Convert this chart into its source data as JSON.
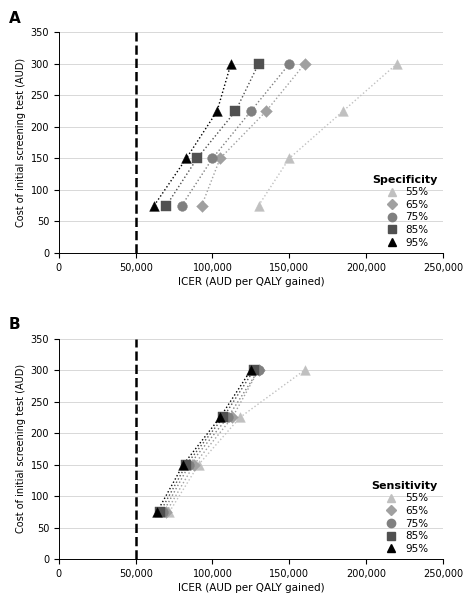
{
  "panel_A": {
    "title": "A",
    "legend_title": "Specificity",
    "series": [
      {
        "label": "55%",
        "color": "#c0c0c0",
        "marker": "^",
        "markersize": 7,
        "x": [
          130000,
          150000,
          185000,
          220000
        ],
        "y": [
          75,
          150,
          225,
          300
        ]
      },
      {
        "label": "65%",
        "color": "#a0a0a0",
        "marker": "D",
        "markersize": 6,
        "x": [
          93000,
          105000,
          135000,
          160000
        ],
        "y": [
          75,
          150,
          225,
          300
        ]
      },
      {
        "label": "75%",
        "color": "#808080",
        "marker": "o",
        "markersize": 7,
        "x": [
          80000,
          100000,
          125000,
          150000
        ],
        "y": [
          75,
          150,
          225,
          300
        ]
      },
      {
        "label": "85%",
        "color": "#505050",
        "marker": "s",
        "markersize": 7,
        "x": [
          70000,
          90000,
          115000,
          130000
        ],
        "y": [
          75,
          150,
          225,
          300
        ]
      },
      {
        "label": "95%",
        "color": "#000000",
        "marker": "^",
        "markersize": 7,
        "x": [
          62000,
          83000,
          103000,
          112000
        ],
        "y": [
          75,
          150,
          225,
          300
        ]
      }
    ]
  },
  "panel_B": {
    "title": "B",
    "legend_title": "Sensitivity",
    "series": [
      {
        "label": "55%",
        "color": "#c0c0c0",
        "marker": "^",
        "markersize": 7,
        "x": [
          72000,
          91000,
          118000,
          160000
        ],
        "y": [
          75,
          150,
          225,
          300
        ]
      },
      {
        "label": "65%",
        "color": "#a0a0a0",
        "marker": "D",
        "markersize": 6,
        "x": [
          70000,
          88000,
          113000,
          130000
        ],
        "y": [
          75,
          150,
          225,
          300
        ]
      },
      {
        "label": "75%",
        "color": "#808080",
        "marker": "o",
        "markersize": 7,
        "x": [
          68000,
          85000,
          110000,
          130000
        ],
        "y": [
          75,
          150,
          225,
          300
        ]
      },
      {
        "label": "85%",
        "color": "#505050",
        "marker": "s",
        "markersize": 7,
        "x": [
          66000,
          83000,
          107000,
          127000
        ],
        "y": [
          75,
          150,
          225,
          300
        ]
      },
      {
        "label": "95%",
        "color": "#000000",
        "marker": "^",
        "markersize": 7,
        "x": [
          64000,
          81000,
          105000,
          125000
        ],
        "y": [
          75,
          150,
          225,
          300
        ]
      }
    ]
  },
  "xlim": [
    0,
    250000
  ],
  "ylim": [
    0,
    350
  ],
  "xticks": [
    0,
    50000,
    100000,
    150000,
    200000,
    250000
  ],
  "xticklabels": [
    "0",
    "50,000",
    "100,000",
    "150,000",
    "200,000",
    "250,000"
  ],
  "yticks": [
    0,
    50,
    100,
    150,
    200,
    250,
    300,
    350
  ],
  "xlabel": "ICER (AUD per QALY gained)",
  "ylabel": "Cost of initial screening test (AUD)",
  "dashed_line_x": 50000,
  "background_color": "#ffffff",
  "grid_color": "#d8d8d8"
}
